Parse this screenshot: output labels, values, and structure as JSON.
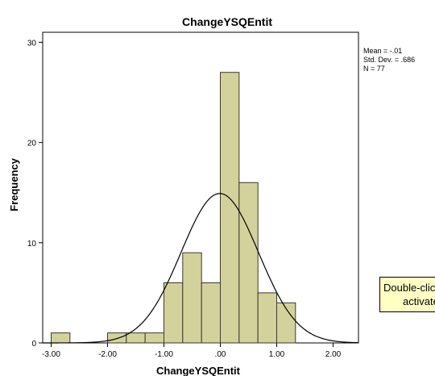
{
  "chart_data": {
    "type": "histogram",
    "title": "ChangeYSQEntit",
    "xlabel": "ChangeYSQEntit",
    "ylabel": "Frequency",
    "xlim": [
      -3.15,
      2.45
    ],
    "ylim": [
      0,
      31
    ],
    "xticks": [
      -3.0,
      -2.0,
      -1.0,
      0.0,
      1.0,
      2.0
    ],
    "xtick_labels": [
      "-3.00",
      "-2.00",
      "-1.00",
      ".00",
      "1.00",
      "2.00"
    ],
    "yticks": [
      0,
      10,
      20,
      30
    ],
    "ytick_labels": [
      "0",
      "10",
      "20",
      "30"
    ],
    "bin_width": 0.333,
    "bins": [
      {
        "start": -3.0,
        "end": -2.667,
        "count": 1
      },
      {
        "start": -2.0,
        "end": -1.667,
        "count": 1
      },
      {
        "start": -1.667,
        "end": -1.333,
        "count": 1
      },
      {
        "start": -1.333,
        "end": -1.0,
        "count": 1
      },
      {
        "start": -1.0,
        "end": -0.667,
        "count": 6
      },
      {
        "start": -0.667,
        "end": -0.333,
        "count": 9
      },
      {
        "start": -0.333,
        "end": 0.0,
        "count": 6
      },
      {
        "start": 0.0,
        "end": 0.333,
        "count": 27
      },
      {
        "start": 0.333,
        "end": 0.667,
        "count": 16
      },
      {
        "start": 0.667,
        "end": 1.0,
        "count": 5
      },
      {
        "start": 1.0,
        "end": 1.333,
        "count": 4
      }
    ],
    "normal_curve": {
      "mean": -0.01,
      "sd": 0.686,
      "n": 77
    },
    "stats": {
      "mean": "Mean = -.01",
      "sd": "Std. Dev. = .686",
      "n": "N = 77"
    },
    "colors": {
      "bar_fill": "#d4d29c",
      "bar_stroke": "#3a3a2a",
      "curve": "#000000"
    }
  },
  "tooltip": {
    "line1": "Double-click",
    "line2": "activate"
  }
}
